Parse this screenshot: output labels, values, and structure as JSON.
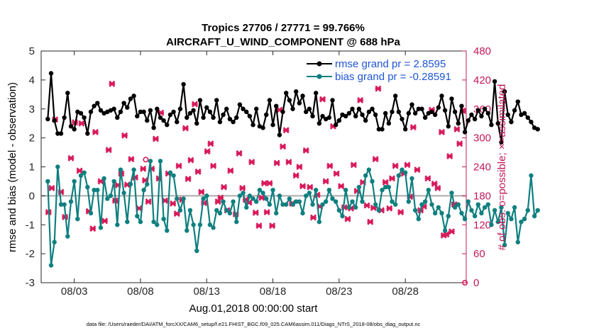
{
  "chart_data": {
    "type": "line",
    "title": "Tropics 27706 / 27771 = 99.766%",
    "subtitle": "AIRCRAFT_U_WIND_COMPONENT @ 688 hPa",
    "xlabel": "Aug.01,2018 00:00:00 start",
    "ylabel": "rmse and bias (model - observation)",
    "ylabel_right": "# of obs: o=possible; ×=assimilated",
    "footer": "data file: /Users/raeder/DAI/ATM_forcXX/CAM6_setup/f.e21.FHIST_BGC.f09_025.CAM6assim.011/Diags_NTrS_2018-08/obs_diag_output.nc",
    "xlim": [
      0.5,
      32.6
    ],
    "ylim": [
      -3,
      5
    ],
    "ylim_right": [
      0,
      480
    ],
    "xticks": [
      3,
      8,
      13,
      18,
      23,
      28
    ],
    "xtick_labels": [
      "08/03",
      "08/08",
      "08/13",
      "08/18",
      "08/23",
      "08/28"
    ],
    "yticks": [
      -3,
      -2,
      -1,
      0,
      1,
      2,
      3,
      4,
      5
    ],
    "yticks_right": [
      0,
      60,
      120,
      180,
      240,
      300,
      360,
      420,
      480
    ],
    "zero_line": 0,
    "colors": {
      "rmse": "#000000",
      "bias": "#0f7f7f",
      "obs": "#d81b5a",
      "right_axis": "#c2185b",
      "legend_text": "#1f55d6",
      "zero_line": "#aaaaaa"
    },
    "legend": {
      "location": "top-right",
      "entries": [
        "rmse grand pr = 2.8595",
        "bias grand pr = -0.28591"
      ]
    },
    "time_step_days": 0.25,
    "time_start_day": 1.0,
    "series": [
      {
        "name": "rmse",
        "marker": "o",
        "values": [
          2.65,
          4.23,
          2.6,
          2.15,
          2.15,
          2.7,
          3.55,
          2.4,
          2.3,
          2.9,
          2.85,
          2.7,
          2.15,
          2.9,
          3.1,
          3.2,
          2.95,
          2.85,
          2.9,
          2.95,
          3.0,
          2.7,
          2.9,
          3.2,
          3.05,
          3.35,
          3.45,
          2.75,
          2.9,
          2.9,
          2.6,
          2.95,
          2.35,
          3.0,
          2.7,
          2.6,
          2.45,
          2.8,
          2.9,
          2.55,
          3.0,
          3.85,
          2.7,
          2.85,
          2.95,
          2.5,
          3.3,
          2.7,
          3.05,
          2.9,
          2.7,
          3.3,
          2.55,
          2.8,
          3.0,
          2.65,
          2.55,
          2.7,
          3.15,
          3.0,
          2.9,
          2.75,
          2.45,
          3.0,
          2.4,
          2.35,
          2.8,
          3.3,
          2.45,
          3.1,
          2.1,
          2.9,
          3.55,
          3.3,
          3.0,
          3.6,
          3.2,
          3.45,
          2.9,
          3.0,
          2.75,
          3.55,
          2.5,
          2.75,
          2.65,
          2.7,
          3.3,
          2.45,
          2.6,
          2.8,
          2.75,
          2.85,
          3.0,
          2.75,
          3.0,
          2.8,
          2.6,
          2.9,
          3.0,
          2.8,
          2.3,
          2.3,
          2.85,
          2.5,
          2.9,
          3.45,
          2.9,
          2.65,
          2.3,
          2.85,
          3.15,
          2.85,
          3.0,
          3.0,
          2.7,
          2.85,
          2.9,
          2.8,
          3.05,
          3.45,
          2.95,
          2.4,
          3.35,
          2.9,
          2.5,
          3.1,
          2.2,
          2.6,
          2.8,
          2.65,
          2.95,
          2.75,
          3.0,
          2.85,
          2.45,
          3.95,
          2.5,
          1.85,
          3.6,
          2.8,
          2.55,
          2.95,
          3.25,
          2.8,
          2.85,
          2.7,
          2.55,
          2.35,
          2.3
        ]
      },
      {
        "name": "bias",
        "marker": "o",
        "values": [
          0.5,
          -2.4,
          -1.6,
          1.0,
          -0.3,
          -0.3,
          -1.4,
          -0.2,
          0.5,
          -0.8,
          0.7,
          0.8,
          0.3,
          -0.6,
          0.2,
          0.2,
          -1.1,
          0.6,
          -0.1,
          0.0,
          0.5,
          -1.0,
          0.9,
          0.1,
          -0.9,
          0.4,
          0.9,
          -0.7,
          -0.9,
          0.2,
          0.4,
          1.2,
          -0.9,
          -1.0,
          1.2,
          -0.8,
          -1.2,
          0.8,
          0.7,
          -0.1,
          -0.5,
          -0.1,
          -1.2,
          -0.5,
          -1.0,
          -1.9,
          -1.0,
          -0.1,
          0.0,
          -1.0,
          -1.1,
          -0.5,
          -0.6,
          -0.2,
          -0.5,
          -0.6,
          -0.2,
          -0.9,
          0.0,
          0.1,
          -0.4,
          0.0,
          -0.1,
          -0.2,
          0.2,
          0.1,
          -0.1,
          -0.3,
          0.2,
          -0.6,
          0.0,
          -0.3,
          -0.3,
          -0.1,
          -0.3,
          -0.2,
          -0.2,
          -0.6,
          0.0,
          0.1,
          -0.3,
          0.2,
          -0.9,
          -0.3,
          -0.2,
          0.2,
          -0.1,
          -0.2,
          -0.5,
          -0.7,
          0.2,
          -0.4,
          -0.2,
          -0.4,
          0.3,
          -0.2,
          0.7,
          0.9,
          0.5,
          -0.3,
          -0.5,
          0.2,
          0.3,
          0.3,
          -0.2,
          -0.3,
          0.7,
          0.9,
          0.8,
          -0.2,
          0.6,
          -0.5,
          -0.8,
          -0.3,
          -0.2,
          0.2,
          -0.3,
          -0.6,
          -0.4,
          -0.6,
          -1.2,
          -0.7,
          0.1,
          -0.4,
          -0.3,
          -0.6,
          -0.8,
          -0.2,
          -0.5,
          -0.7,
          -0.3,
          -0.6,
          -0.4,
          -0.3,
          -1.0,
          -0.5,
          -0.9,
          -0.4,
          -1.7,
          -0.6,
          -0.8,
          -0.4,
          -1.6,
          -0.9,
          -0.8,
          -0.5,
          0.7,
          -0.7,
          -0.5
        ]
      },
      {
        "name": "obs_assimilated",
        "marker": "x",
        "axis": "right",
        "points": [
          [
            1.05,
            146
          ],
          [
            1.3,
            196
          ],
          [
            1.55,
            338
          ],
          [
            2.0,
            188
          ],
          [
            2.3,
            136
          ],
          [
            2.75,
            258
          ],
          [
            3.05,
            332
          ],
          [
            3.4,
            232
          ],
          [
            3.55,
            330
          ],
          [
            4.1,
            148
          ],
          [
            4.4,
            112
          ],
          [
            4.6,
            312
          ],
          [
            5.0,
            210
          ],
          [
            5.3,
            128
          ],
          [
            5.6,
            275
          ],
          [
            5.85,
            412
          ],
          [
            6.1,
            170
          ],
          [
            6.3,
            202
          ],
          [
            6.55,
            226
          ],
          [
            6.8,
            305
          ],
          [
            7.0,
            203
          ],
          [
            7.3,
            256
          ],
          [
            7.6,
            218
          ],
          [
            7.9,
            154
          ],
          [
            8.2,
            236
          ],
          [
            8.35,
            212
          ],
          [
            8.6,
            168
          ],
          [
            8.85,
            236
          ],
          [
            9.15,
            298
          ],
          [
            9.4,
            216
          ],
          [
            9.55,
            352
          ],
          [
            9.85,
            170
          ],
          [
            10.1,
            226
          ],
          [
            10.45,
            164
          ],
          [
            10.75,
            143
          ],
          [
            10.9,
            242
          ],
          [
            11.15,
            172
          ],
          [
            11.4,
            320
          ],
          [
            11.6,
            215
          ],
          [
            11.8,
            254
          ],
          [
            12.1,
            370
          ],
          [
            12.35,
            230
          ],
          [
            12.6,
            188
          ],
          [
            12.8,
            165
          ],
          [
            13.05,
            272
          ],
          [
            13.3,
            288
          ],
          [
            13.5,
            242
          ],
          [
            13.85,
            168
          ],
          [
            14.05,
            176
          ],
          [
            14.3,
            198
          ],
          [
            14.55,
            150
          ],
          [
            14.8,
            232
          ],
          [
            15.2,
            142
          ],
          [
            15.45,
            268
          ],
          [
            15.7,
            196
          ],
          [
            15.95,
            172
          ],
          [
            16.2,
            166
          ],
          [
            16.4,
            250
          ],
          [
            16.7,
            145
          ],
          [
            16.95,
            118
          ],
          [
            17.15,
            176
          ],
          [
            17.35,
            206
          ],
          [
            17.55,
            146
          ],
          [
            17.75,
            206
          ],
          [
            17.95,
            118
          ],
          [
            18.3,
            248
          ],
          [
            18.5,
            358
          ],
          [
            18.75,
            282
          ],
          [
            19.0,
            316
          ],
          [
            19.2,
            250
          ],
          [
            19.45,
            164
          ],
          [
            19.75,
            222
          ],
          [
            20.0,
            240
          ],
          [
            20.25,
            200
          ],
          [
            20.5,
            274
          ],
          [
            20.8,
            198
          ],
          [
            21.05,
            135
          ],
          [
            21.35,
            182
          ],
          [
            21.55,
            158
          ],
          [
            21.75,
            380
          ],
          [
            22.0,
            210
          ],
          [
            22.3,
            242
          ],
          [
            22.55,
            324
          ],
          [
            22.8,
            226
          ],
          [
            23.15,
            200
          ],
          [
            23.4,
            156
          ],
          [
            23.65,
            132
          ],
          [
            23.9,
            154
          ],
          [
            24.1,
            244
          ],
          [
            24.35,
            190
          ],
          [
            24.6,
            378
          ],
          [
            24.8,
            208
          ],
          [
            25.1,
            160
          ],
          [
            25.35,
            126
          ],
          [
            25.6,
            155
          ],
          [
            25.75,
            256
          ],
          [
            25.95,
            402
          ],
          [
            26.2,
            150
          ],
          [
            26.5,
            208
          ],
          [
            26.8,
            154
          ],
          [
            27.0,
            216
          ],
          [
            27.25,
            242
          ],
          [
            27.45,
            428
          ],
          [
            27.65,
            146
          ],
          [
            27.9,
            226
          ],
          [
            28.15,
            244
          ],
          [
            28.35,
            178
          ],
          [
            28.6,
            322
          ],
          [
            28.9,
            234
          ],
          [
            29.15,
            150
          ],
          [
            29.4,
            158
          ],
          [
            29.7,
            216
          ],
          [
            30.0,
            358
          ],
          [
            30.2,
            205
          ],
          [
            30.45,
            196
          ],
          [
            30.75,
            312
          ],
          [
            30.9,
            98
          ],
          [
            31.1,
            100
          ],
          [
            31.35,
            262
          ],
          [
            31.5,
            106
          ],
          [
            31.7,
            162
          ],
          [
            31.9,
            318
          ],
          [
            32.1,
            288
          ],
          [
            32.35,
            356
          ]
        ]
      },
      {
        "name": "obs_possible",
        "marker": "o",
        "axis": "right",
        "points": [
          [
            8.4,
            255
          ],
          [
            32.5,
            0
          ]
        ]
      }
    ]
  }
}
